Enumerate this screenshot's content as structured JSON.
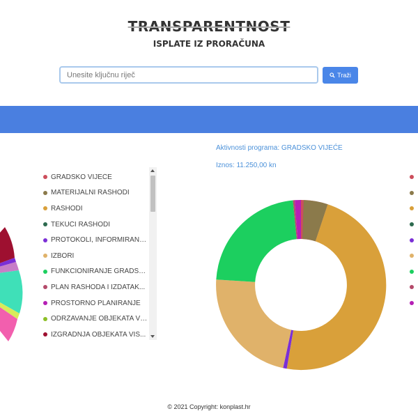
{
  "header": {
    "title": "TRANSPARENTNOST",
    "subtitle": "ISPLATE IZ PRORAČUNA"
  },
  "search": {
    "placeholder": "Unesite ključnu riječ",
    "button_label": "Traži",
    "button_icon": "search-icon"
  },
  "legend": {
    "items": [
      {
        "label": "GRADSKO VIJEĆE",
        "color": "#cc4e5c"
      },
      {
        "label": "MATERIJALNI RASHODI",
        "color": "#8b7a4b"
      },
      {
        "label": "RASHODI",
        "color": "#d9a03a"
      },
      {
        "label": "TEKUĆI RASHODI",
        "color": "#2d6a4f"
      },
      {
        "label": "PROTOKOLI, INFORMIRANJ...",
        "color": "#7b2fd6"
      },
      {
        "label": "IZBORI",
        "color": "#e0b26a"
      },
      {
        "label": "FUNKCIONIRANJE GRADSK...",
        "color": "#1ccf5f"
      },
      {
        "label": "PLAN RASHODA I IZDATAK...",
        "color": "#b44a6a"
      },
      {
        "label": "PROSTORNO PLANIRANJE",
        "color": "#b51fb5"
      },
      {
        "label": "ODRŽAVANJE OBJEKATA VI...",
        "color": "#8cbf26"
      },
      {
        "label": "IZGRADNJA OBJEKATA VIS...",
        "color": "#9e1030"
      }
    ]
  },
  "detail": {
    "program_line": "Aktivnosti programa: GRADSKO VIJEĆE",
    "amount_line": "Iznos: 11.250,00 kn"
  },
  "footer": {
    "text": "© 2021 Copyright: konplast.hr"
  },
  "colors": {
    "accent": "#4a7fe0",
    "button": "#4a86e8",
    "link": "#4a90d9"
  }
}
